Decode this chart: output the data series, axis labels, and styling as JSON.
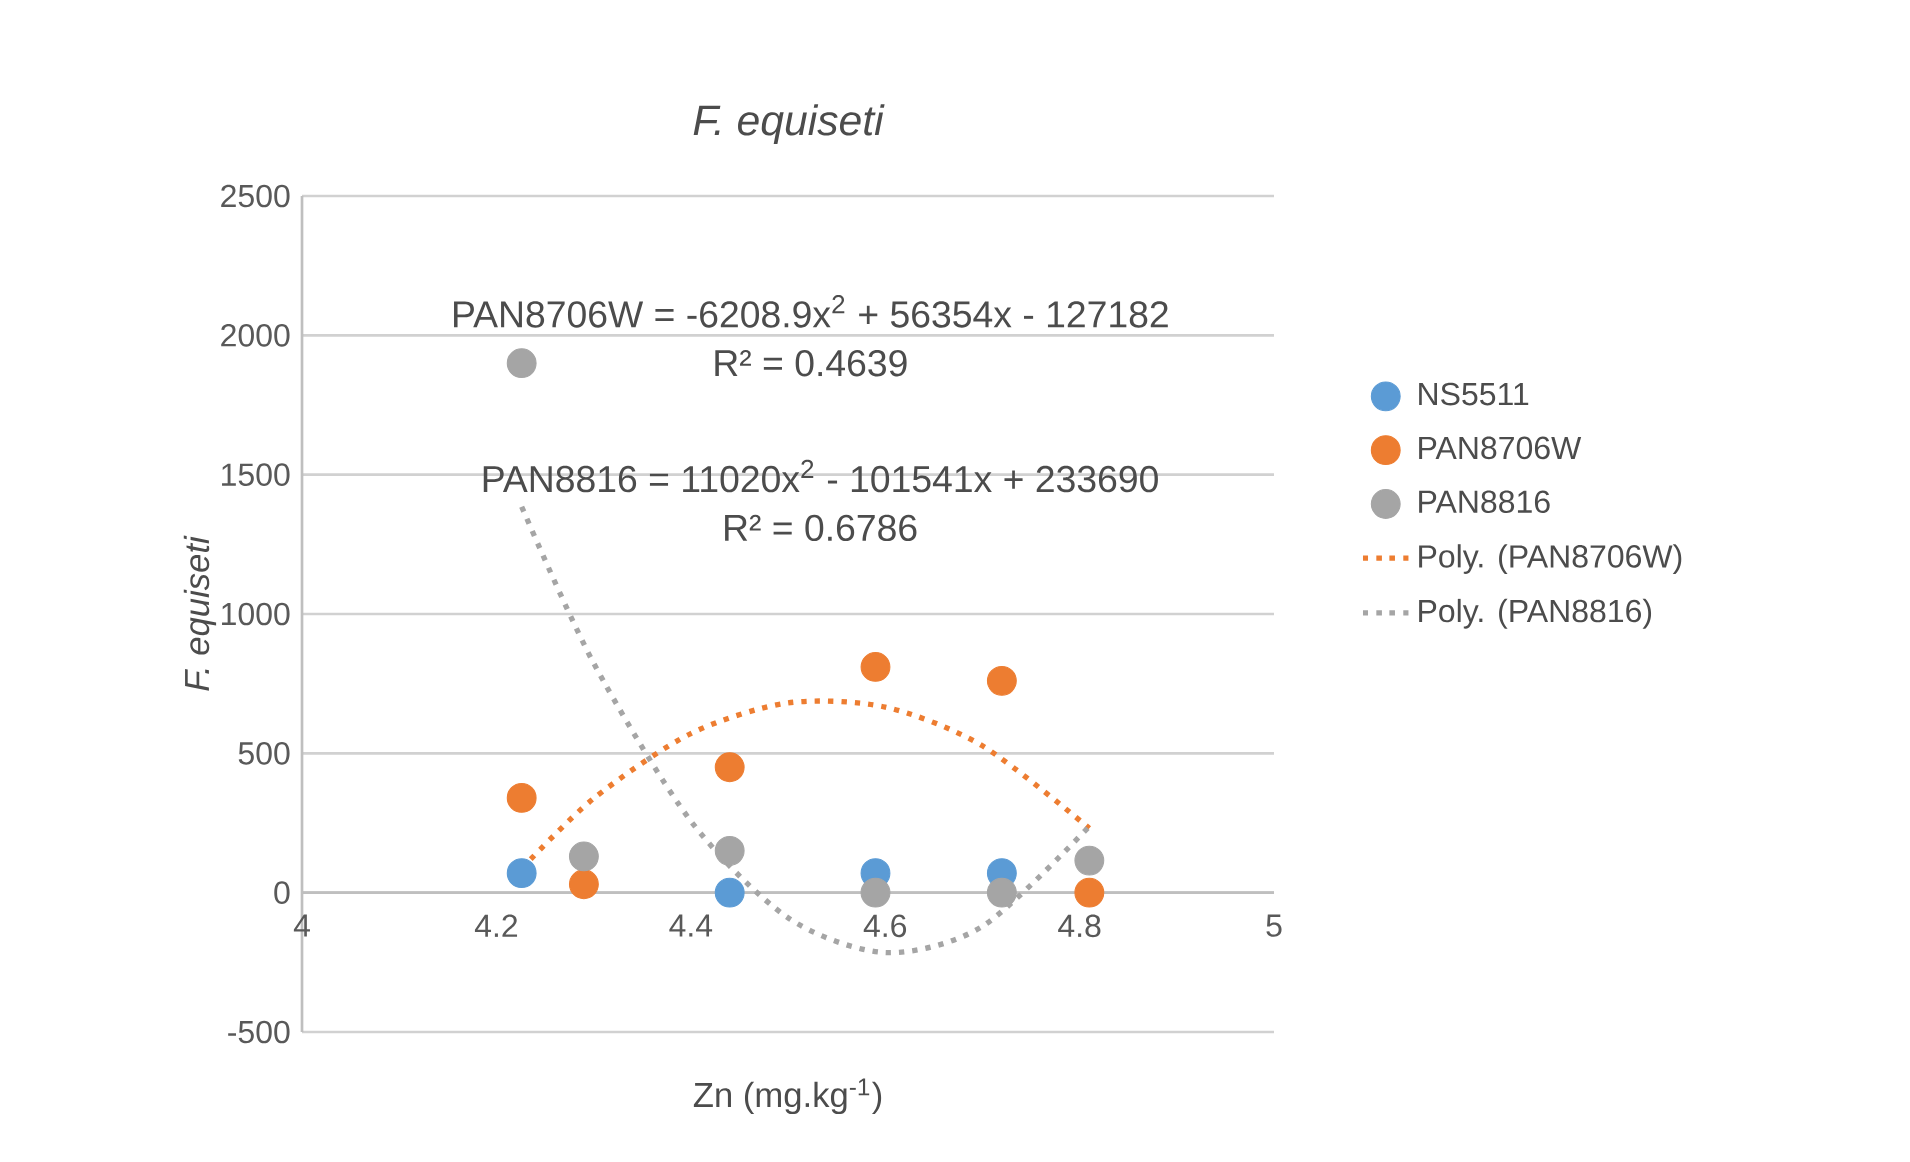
{
  "chart_data": {
    "type": "scatter",
    "title": "F. equiseti",
    "xlabel": "Zn (mg.kg$^{-1}$)",
    "ylabel": "F. equiseti",
    "xlim": [
      4,
      5
    ],
    "xticks": [
      4,
      4.2,
      4.4,
      4.6,
      4.8,
      5
    ],
    "ylim": [
      -500,
      2500
    ],
    "yticks": [
      -500,
      0,
      500,
      1000,
      1500,
      2000,
      2500
    ],
    "grid": "y",
    "legend": "right",
    "marker": "circle",
    "x": [
      4.226,
      4.29,
      4.44,
      4.59,
      4.72,
      4.81
    ],
    "series": [
      {
        "name": "NS5511",
        "color": "#5b9bd5",
        "values": [
          70,
          null,
          0,
          70,
          70,
          null
        ]
      },
      {
        "name": "PAN8706W",
        "color": "#ed7d31",
        "values": [
          340,
          30,
          450,
          810,
          760,
          0
        ]
      },
      {
        "name": "PAN8816",
        "color": "#a5a5a5",
        "values": [
          1900,
          130,
          150,
          0,
          0,
          115
        ]
      },
      {
        "name": "Poly. (PAN8706W)",
        "type": "line",
        "color": "#ed7d31",
        "marker": "none",
        "line_style": "dotted",
        "x": [
          4.226,
          4.3,
          4.4,
          4.5,
          4.6,
          4.7,
          4.81
        ],
        "values": [
          86,
          338,
          571,
          681,
          666,
          527,
          231
        ]
      },
      {
        "name": "Poly. (PAN8816)",
        "type": "line",
        "color": "#a5a5a5",
        "marker": "none",
        "line_style": "dotted",
        "x": [
          4.226,
          4.3,
          4.4,
          4.5,
          4.6,
          4.7,
          4.81
        ],
        "values": [
          1385,
          824,
          257,
          -90,
          -215,
          -121,
          238
        ]
      }
    ],
    "annotations": [
      "PAN8706W = -6208.9x$^{2}$ + 56354x - 127182",
      "R² = 0.4639",
      "PAN8816 = 11020x$^{2}$ - 101541x + 233690",
      "R² = 0.6786"
    ]
  }
}
